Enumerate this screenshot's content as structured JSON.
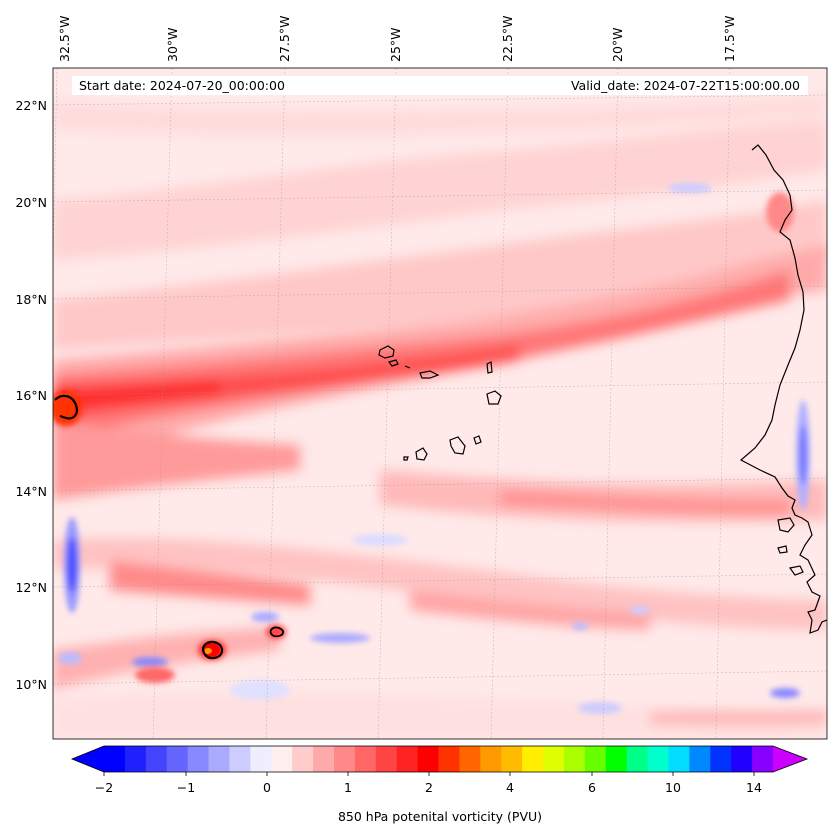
{
  "header": {
    "start_date": "Start date: 2024-07-20_00:00:00",
    "valid_date": "Valid_date: 2024-07-22T15:00:00.00"
  },
  "map": {
    "longitude_labels": [
      "32.5°W",
      "30°W",
      "27.5°W",
      "25°W",
      "22.5°W",
      "20°W",
      "17.5°W"
    ],
    "latitude_labels": [
      "22°N",
      "20°N",
      "18°N",
      "16°N",
      "14°N",
      "12°N",
      "10°N"
    ],
    "extent": {
      "lon_min": -33,
      "lon_max": -15.5,
      "lat_min": 8.9,
      "lat_max": 22.8
    },
    "gridlines": true
  },
  "colorbar": {
    "label": "850 hPa potenital vorticity (PVU)",
    "tick_labels": [
      "−2",
      "−1",
      "0",
      "1",
      "2",
      "4",
      "6",
      "10",
      "14"
    ],
    "colors": [
      "#0000ff",
      "#2020ff",
      "#4444ff",
      "#6666ff",
      "#8888ff",
      "#aaaaff",
      "#ccccff",
      "#eeeeff",
      "#ffeeee",
      "#ffcccc",
      "#ffaaaa",
      "#ff8888",
      "#ff6666",
      "#ff4444",
      "#ff2222",
      "#ff0000",
      "#ff3300",
      "#ff6600",
      "#ff9900",
      "#ffbb00",
      "#ffee00",
      "#ddff00",
      "#aaff00",
      "#66ff00",
      "#00ff00",
      "#00ff88",
      "#00ffcc",
      "#00ddff",
      "#0088ff",
      "#0033ff",
      "#2200ff",
      "#8800ff"
    ],
    "extend_low_color": "#0000ff",
    "extend_high_color": "#cc00ff"
  }
}
